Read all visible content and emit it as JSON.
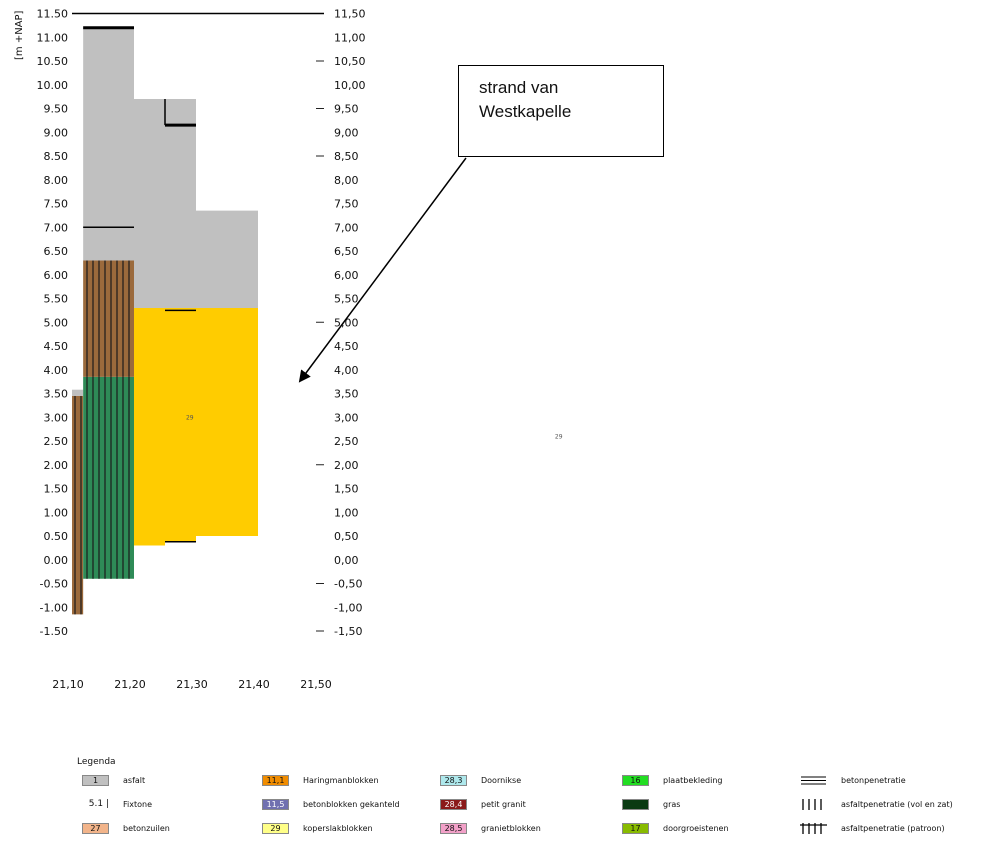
{
  "chart_data": {
    "type": "bar",
    "ylabel": "[m +NAP]",
    "ylim": [
      -1.5,
      11.5
    ],
    "y_ticks_left": [
      "-1.50",
      "-1.00",
      "-0.50",
      "0.00",
      "0.50",
      "1.00",
      "1.50",
      "2.00",
      "2.50",
      "3.00",
      "3.50",
      "4.00",
      "4.50",
      "5.00",
      "5.50",
      "6.00",
      "6.50",
      "7.00",
      "7.50",
      "8.00",
      "8.50",
      "9.00",
      "9.50",
      "10.00",
      "10.50",
      "11.00",
      "11.50"
    ],
    "y_ticks_right": [
      "-1,50",
      "-1,00",
      "-0,50",
      "0,00",
      "0,50",
      "1,00",
      "1,50",
      "2,00",
      "2,50",
      "3,00",
      "3,50",
      "4,00",
      "4,50",
      "5,00",
      "5,50",
      "6,00",
      "6,50",
      "7,00",
      "7,50",
      "8,00",
      "8,50",
      "9,00",
      "9,50",
      "10,00",
      "10,50",
      "11,00",
      "11,50"
    ],
    "x_ticks": [
      "21,10",
      "21,20",
      "21,30",
      "21,40",
      "21,50"
    ],
    "x_range": [
      21.1,
      21.5
    ],
    "segments": [
      {
        "x0": 21.1,
        "x1": 21.118,
        "y0": -1.15,
        "y1": 3.45,
        "material": "betonzuilen",
        "pattern": "vertical",
        "fill": "#9b6a3c"
      },
      {
        "x0": 21.1,
        "x1": 21.118,
        "y0": 3.45,
        "y1": 3.58,
        "material": "asfalt",
        "pattern": "none",
        "fill": "#c0c0c0"
      },
      {
        "x0": 21.118,
        "x1": 21.2,
        "y0": -0.4,
        "y1": 3.85,
        "material": "gras",
        "pattern": "vertical",
        "fill": "#2e8b57"
      },
      {
        "x0": 21.118,
        "x1": 21.2,
        "y0": 3.85,
        "y1": 6.3,
        "material": "betonzuilen",
        "pattern": "vertical",
        "fill": "#9b6a3c"
      },
      {
        "x0": 21.118,
        "x1": 21.2,
        "y0": 6.3,
        "y1": 11.2,
        "material": "asfalt",
        "pattern": "none",
        "fill": "#c0c0c0"
      },
      {
        "x0": 21.2,
        "x1": 21.25,
        "y0": 0.3,
        "y1": 5.3,
        "material": "koperslakblokken",
        "pattern": "none",
        "fill": "#ffcc00"
      },
      {
        "x0": 21.2,
        "x1": 21.25,
        "y0": 5.3,
        "y1": 9.7,
        "material": "asfalt",
        "pattern": "none",
        "fill": "#c0c0c0"
      },
      {
        "x0": 21.25,
        "x1": 21.3,
        "y0": 0.37,
        "y1": 5.3,
        "material": "koperslakblokken",
        "pattern": "none",
        "fill": "#ffcc00"
      },
      {
        "x0": 21.25,
        "x1": 21.3,
        "y0": 5.3,
        "y1": 9.7,
        "material": "asfalt",
        "pattern": "none",
        "fill": "#c0c0c0"
      },
      {
        "x0": 21.3,
        "x1": 21.4,
        "y0": 0.5,
        "y1": 5.3,
        "material": "koperslakblokken",
        "pattern": "none",
        "fill": "#ffcc00"
      },
      {
        "x0": 21.3,
        "x1": 21.4,
        "y0": 5.3,
        "y1": 7.35,
        "material": "asfalt",
        "pattern": "none",
        "fill": "#c0c0c0"
      }
    ],
    "marker_lines": [
      {
        "x0": 21.118,
        "x1": 21.2,
        "y": 11.2,
        "thick": true
      },
      {
        "x0": 21.118,
        "x1": 21.2,
        "y": 7.0,
        "thick": false
      },
      {
        "x0": 21.25,
        "x1": 21.3,
        "y": 9.15,
        "thick": true
      },
      {
        "x0": 21.25,
        "x1": 21.3,
        "y": 5.25,
        "thick": false
      },
      {
        "x0": 21.25,
        "x1": 21.3,
        "y": 0.38,
        "thick": false
      }
    ],
    "step_lines": [
      {
        "x": 21.25,
        "y0": 9.15,
        "y1": 9.7
      }
    ],
    "bar_labels": [
      {
        "x": 21.29,
        "y": 2.95,
        "text": "29"
      },
      {
        "x": 21.885,
        "y": 2.55,
        "text": "29"
      }
    ]
  },
  "annotation": {
    "line1": "strand van",
    "line2": "Westkapelle"
  },
  "legend": {
    "title": "Legenda",
    "items": [
      {
        "code": "1",
        "label": "asfalt",
        "color": "#c0c0c0",
        "col": 0,
        "row": 0
      },
      {
        "code": "5.1",
        "label": "Fixtone",
        "color": "",
        "col": 0,
        "row": 1,
        "symbol": "bar"
      },
      {
        "code": "27",
        "label": "betonzuilen",
        "color": "#f2b48a",
        "col": 0,
        "row": 2
      },
      {
        "code": "11,1",
        "label": "Haringmanblokken",
        "color": "#f08c00",
        "col": 1,
        "row": 0
      },
      {
        "code": "11,5",
        "label": "betonblokken gekanteld",
        "color": "#7070b0",
        "col": 1,
        "row": 1
      },
      {
        "code": "29",
        "label": "koperslakblokken",
        "color": "#ffff88",
        "col": 1,
        "row": 2
      },
      {
        "code": "28,3",
        "label": "Doornikse",
        "color": "#aee8ec",
        "col": 2,
        "row": 0
      },
      {
        "code": "28,4",
        "label": "petit granit",
        "color": "#8b1a1a",
        "col": 2,
        "row": 1
      },
      {
        "code": "28,5",
        "label": "granietblokken",
        "color": "#f2a0c8",
        "col": 2,
        "row": 2
      },
      {
        "code": "16",
        "label": "plaatbekleding",
        "color": "#22dd22",
        "col": 3,
        "row": 0
      },
      {
        "code": "",
        "label": "gras",
        "color": "#0a3a12",
        "col": 3,
        "row": 1
      },
      {
        "code": "17",
        "label": "doorgroeistenen",
        "color": "#88bb00",
        "col": 3,
        "row": 2
      },
      {
        "code": "",
        "label": "betonpenetratie",
        "color": "",
        "col": 4,
        "row": 0,
        "symbol": "triple-line"
      },
      {
        "code": "",
        "label": "asfaltpenetratie (vol en zat)",
        "color": "",
        "col": 4,
        "row": 1,
        "symbol": "vertical-bars"
      },
      {
        "code": "",
        "label": "asfaltpenetratie (patroon)",
        "color": "",
        "col": 4,
        "row": 2,
        "symbol": "grid"
      }
    ]
  }
}
